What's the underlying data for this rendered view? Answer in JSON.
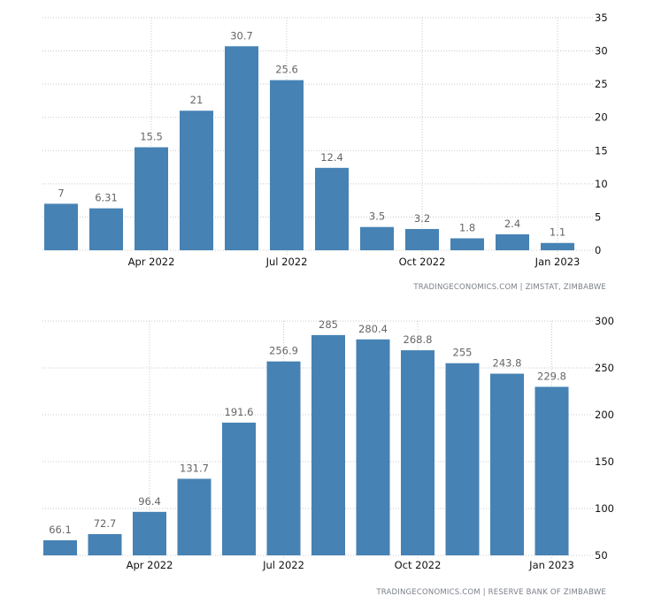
{
  "chart_data": [
    {
      "type": "bar",
      "values": [
        7,
        6.31,
        15.5,
        21,
        30.7,
        25.6,
        12.4,
        3.5,
        3.2,
        1.8,
        2.4,
        1.1
      ],
      "data_labels": [
        "7",
        "6.31",
        "15.5",
        "21",
        "30.7",
        "25.6",
        "12.4",
        "3.5",
        "3.2",
        "1.8",
        "2.4",
        "1.1"
      ],
      "x_tick_labels": [
        "Apr 2022",
        "Jul 2022",
        "Oct 2022",
        "Jan 2023"
      ],
      "y_ticks": [
        0,
        5,
        10,
        15,
        20,
        25,
        30,
        35
      ],
      "ylim": [
        0,
        35
      ],
      "y_axis_position": "right",
      "grid": true,
      "bar_color": "#4682b4",
      "source": "TRADINGECONOMICS.COM  |  ZIMSTAT, ZIMBABWE"
    },
    {
      "type": "bar",
      "values": [
        66.1,
        72.7,
        96.4,
        131.7,
        191.6,
        256.9,
        285,
        280.4,
        268.8,
        255,
        243.8,
        229.8
      ],
      "data_labels": [
        "66.1",
        "72.7",
        "96.4",
        "131.7",
        "191.6",
        "256.9",
        "285",
        "280.4",
        "268.8",
        "255",
        "243.8",
        "229.8"
      ],
      "x_tick_labels": [
        "Apr 2022",
        "Jul 2022",
        "Oct 2022",
        "Jan 2023"
      ],
      "y_ticks": [
        50,
        100,
        150,
        200,
        250,
        300
      ],
      "ylim": [
        50,
        300
      ],
      "y_axis_position": "right",
      "grid": true,
      "bar_color": "#4682b4",
      "source": "TRADINGECONOMICS.COM  |  RESERVE BANK OF ZIMBABWE"
    }
  ]
}
